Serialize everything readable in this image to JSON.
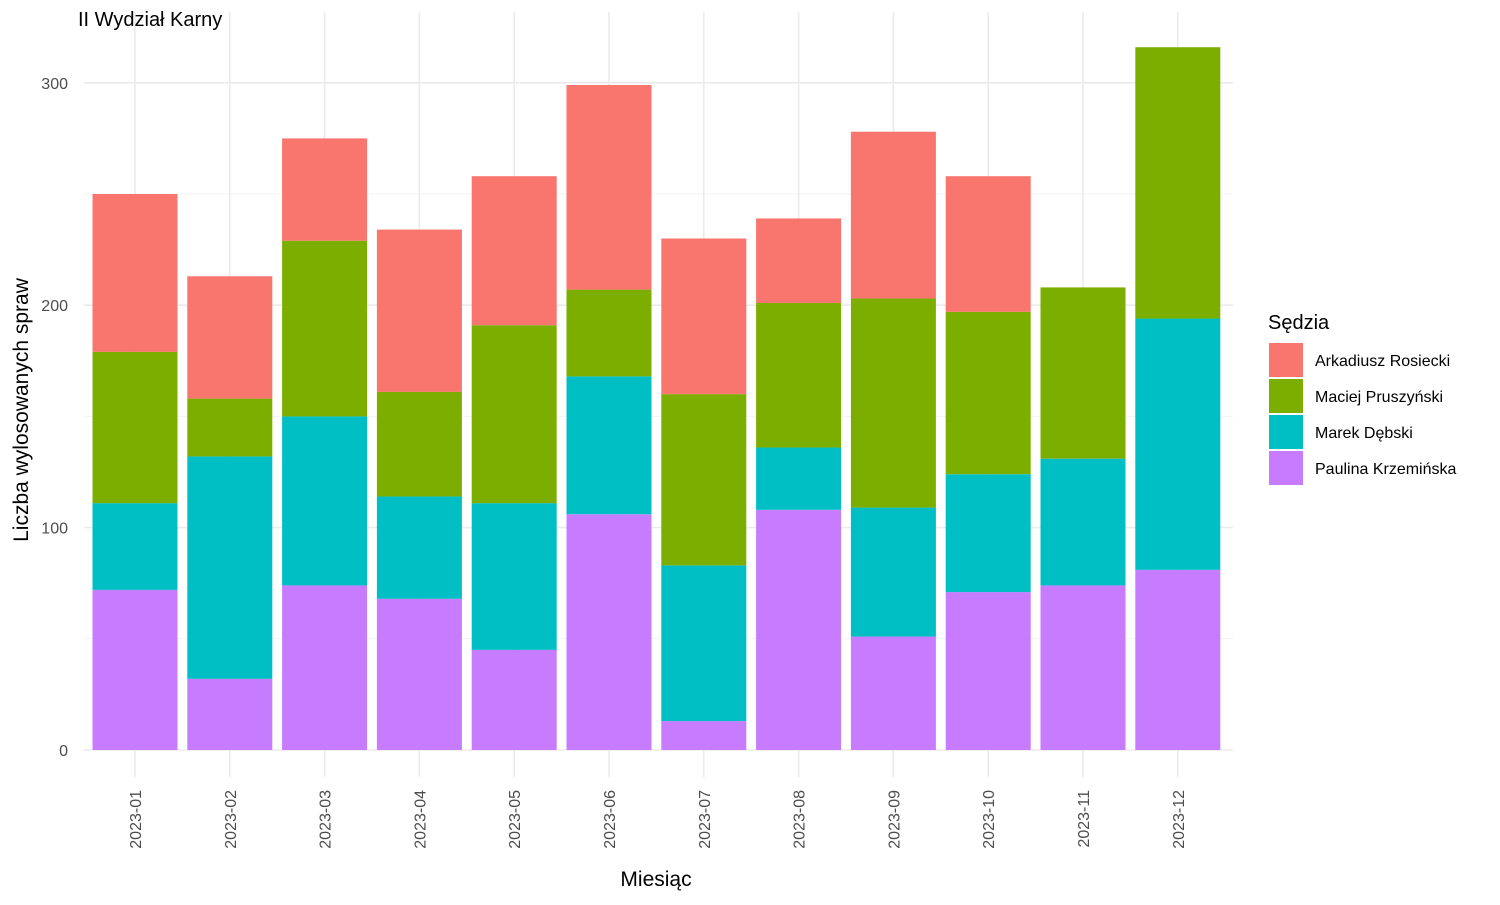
{
  "chart_data": {
    "type": "bar",
    "stacked": true,
    "title": "II Wydział Karny",
    "xlabel": "Miesiąc",
    "ylabel": "Liczba wylosowanych spraw",
    "ylim": [
      0,
      320
    ],
    "yticks": [
      0,
      100,
      200,
      300
    ],
    "grid": true,
    "legend": {
      "title": "Sędzia",
      "placement": "right"
    },
    "categories": [
      "2023-01",
      "2023-02",
      "2023-03",
      "2023-04",
      "2023-05",
      "2023-06",
      "2023-07",
      "2023-08",
      "2023-09",
      "2023-10",
      "2023-11",
      "2023-12"
    ],
    "series": [
      {
        "name": "Paulina Krzemińska",
        "color": "#C77CFF",
        "values": [
          72,
          32,
          74,
          68,
          45,
          106,
          13,
          108,
          51,
          71,
          74,
          81
        ]
      },
      {
        "name": "Marek Dębski",
        "color": "#00BFC4",
        "values": [
          39,
          100,
          76,
          46,
          66,
          62,
          70,
          28,
          58,
          53,
          57,
          113
        ]
      },
      {
        "name": "Maciej Pruszyński",
        "color": "#7CAE00",
        "values": [
          68,
          26,
          79,
          47,
          80,
          39,
          77,
          65,
          94,
          73,
          77,
          122
        ]
      },
      {
        "name": "Arkadiusz Rosiecki",
        "color": "#F8766D",
        "values": [
          71,
          55,
          46,
          73,
          67,
          92,
          70,
          38,
          75,
          61,
          0,
          0
        ]
      }
    ],
    "legend_order": [
      "Arkadiusz Rosiecki",
      "Maciej Pruszyński",
      "Marek Dębski",
      "Paulina Krzemińska"
    ]
  }
}
